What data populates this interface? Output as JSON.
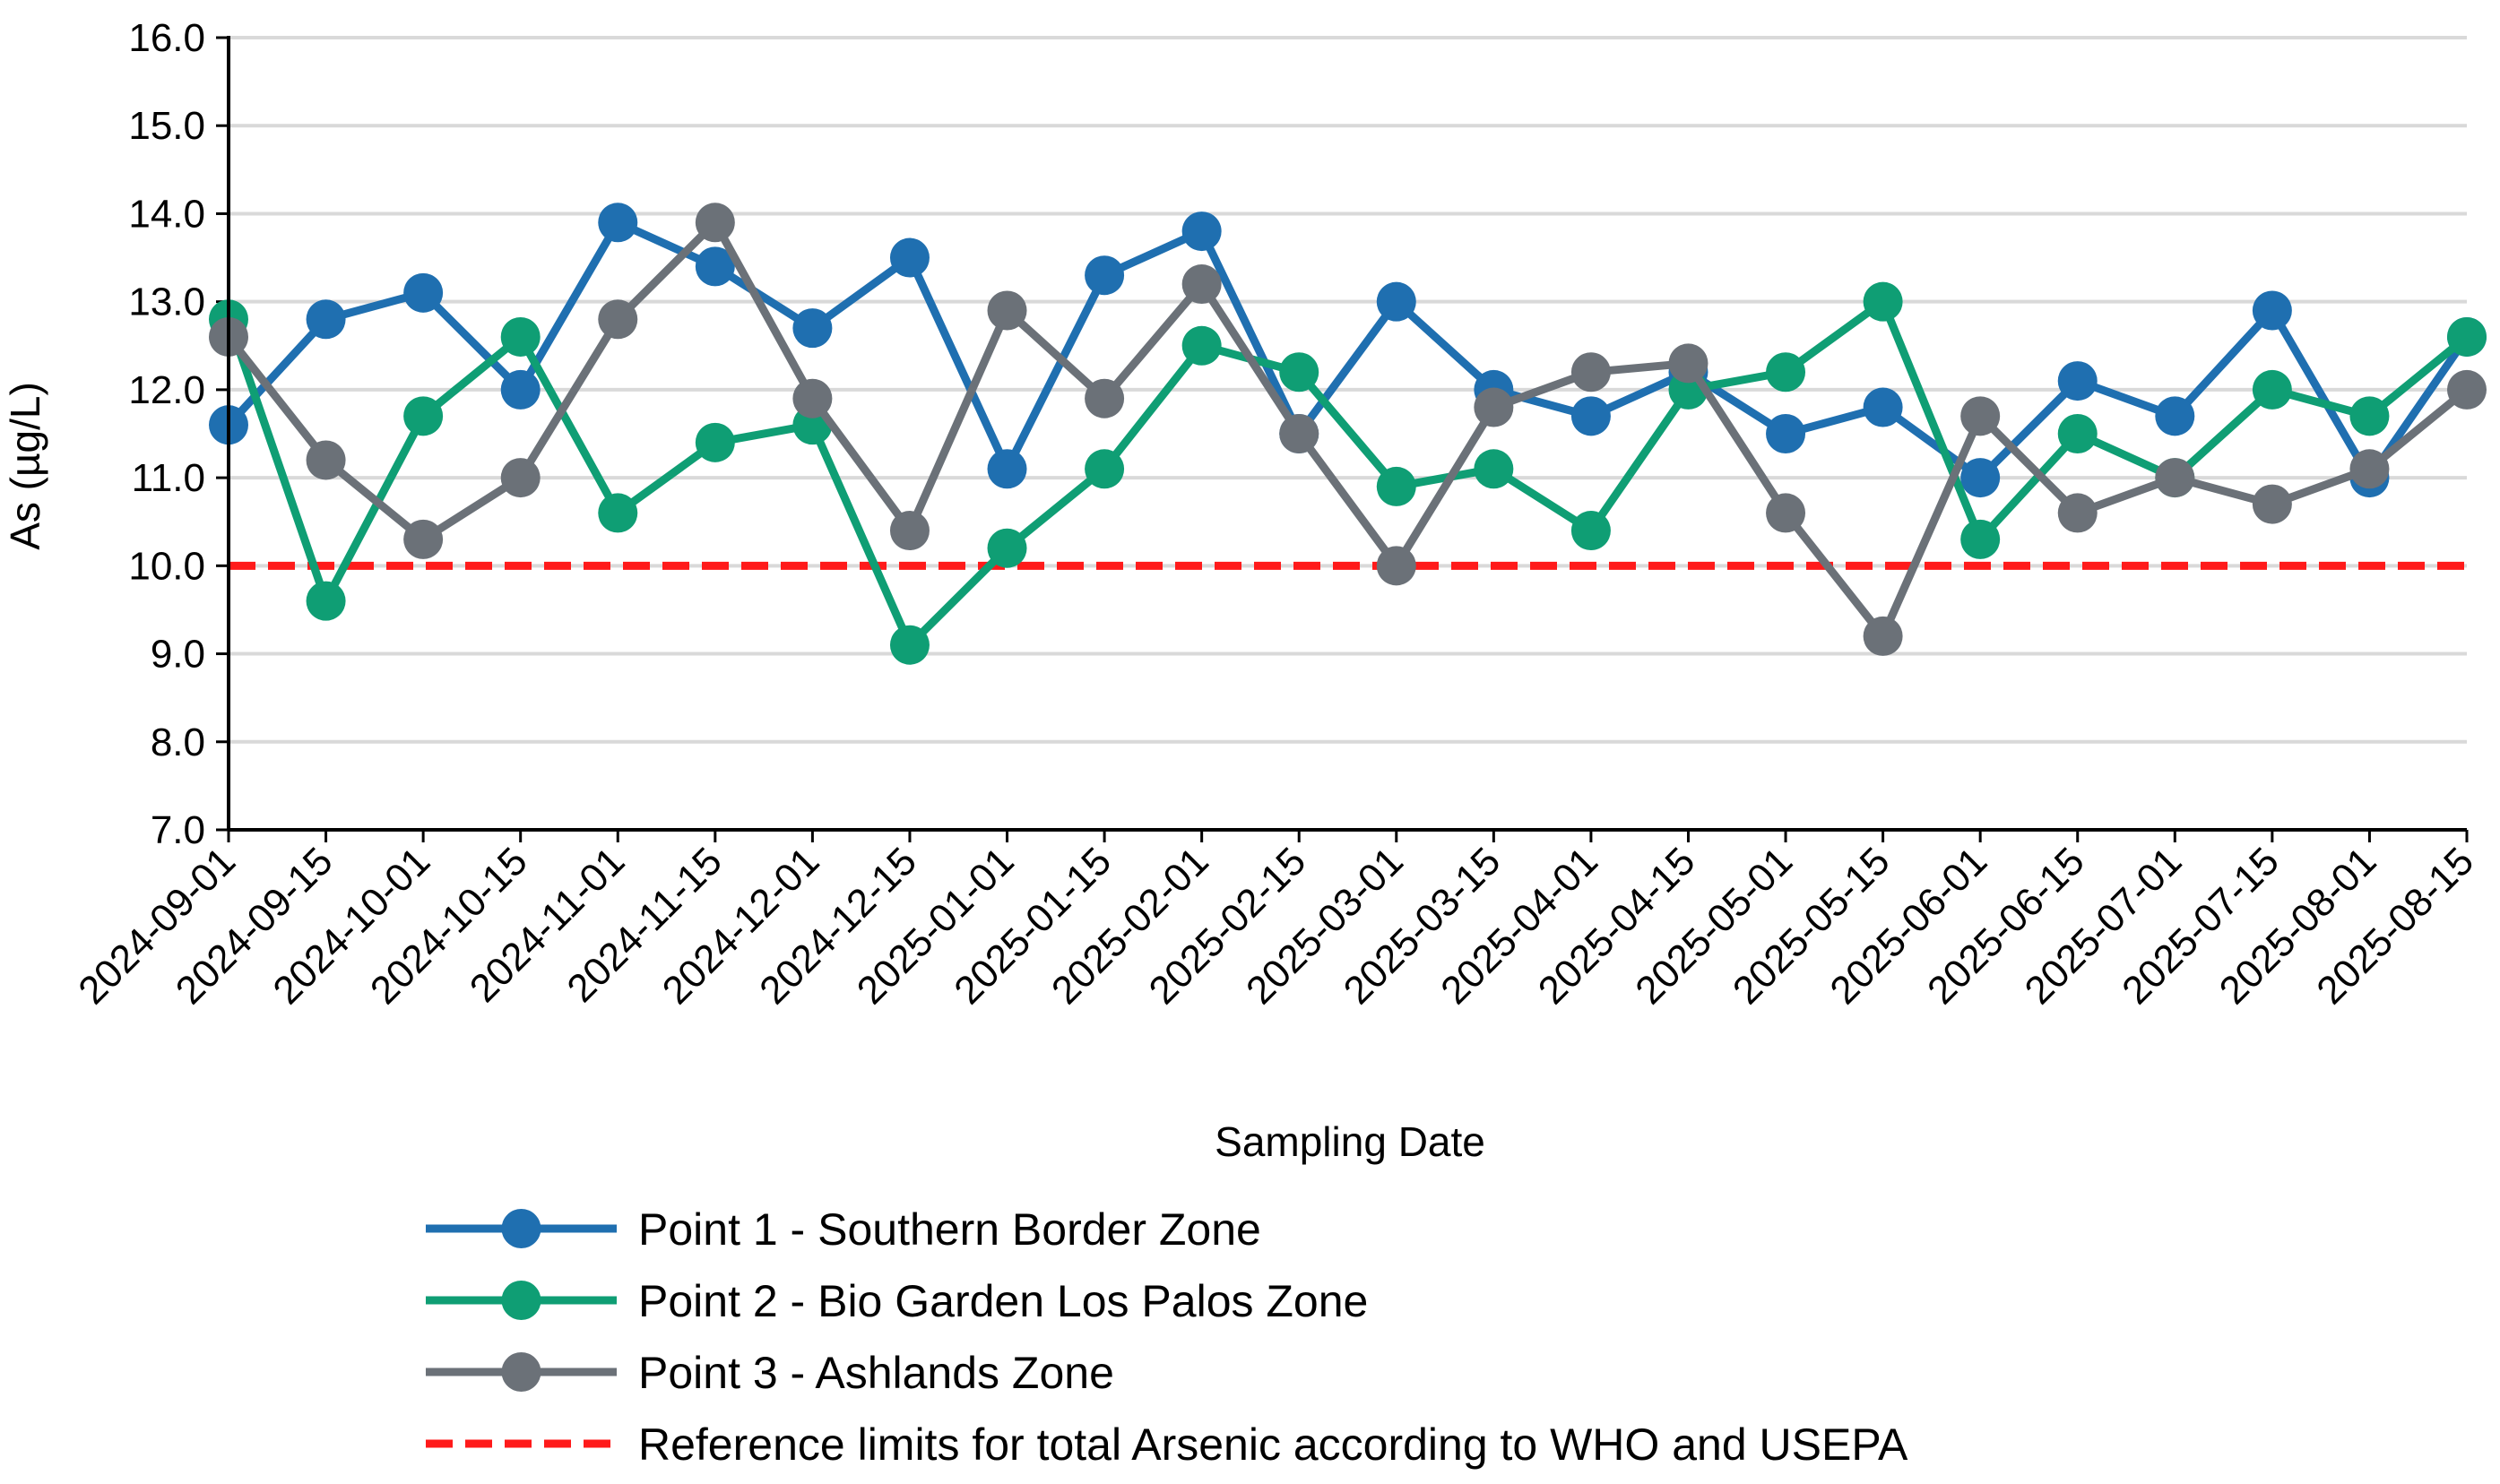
{
  "chart_data": {
    "type": "line",
    "title": "",
    "xlabel": "Sampling Date",
    "ylabel": "As (µg/L)",
    "ylim": [
      7.0,
      16.0
    ],
    "yticks": [
      "7.0",
      "8.0",
      "9.0",
      "10.0",
      "11.0",
      "12.0",
      "13.0",
      "14.0",
      "15.0",
      "16.0"
    ],
    "grid": true,
    "legend_position": "bottom",
    "categories": [
      "2024-09-01",
      "2024-09-15",
      "2024-10-01",
      "2024-10-15",
      "2024-11-01",
      "2024-11-15",
      "2024-12-01",
      "2024-12-15",
      "2025-01-01",
      "2025-01-15",
      "2025-02-01",
      "2025-02-15",
      "2025-03-01",
      "2025-03-15",
      "2025-04-01",
      "2025-04-15",
      "2025-05-01",
      "2025-05-15",
      "2025-06-01",
      "2025-06-15",
      "2025-07-01",
      "2025-07-15",
      "2025-08-01",
      "2025-08-15"
    ],
    "series": [
      {
        "name": "Point 1 - Southern Border Zone",
        "color": "#1f6fb0",
        "values": [
          11.6,
          12.8,
          13.1,
          12.0,
          13.9,
          13.4,
          12.7,
          13.5,
          11.1,
          13.3,
          13.8,
          11.5,
          13.0,
          12.0,
          11.7,
          12.2,
          11.5,
          11.8,
          11.0,
          12.1,
          11.7,
          12.9,
          11.0,
          12.6
        ]
      },
      {
        "name": "Point 2 - Bio Garden Los Palos Zone",
        "color": "#0f9e74",
        "values": [
          12.8,
          9.6,
          11.7,
          12.6,
          10.6,
          11.4,
          11.6,
          9.1,
          10.2,
          11.1,
          12.5,
          12.2,
          10.9,
          11.1,
          10.4,
          12.0,
          12.2,
          13.0,
          10.3,
          11.5,
          11.0,
          12.0,
          11.7,
          12.6
        ]
      },
      {
        "name": "Point 3 - Ashlands Zone",
        "color": "#6b7178",
        "values": [
          12.6,
          11.2,
          10.3,
          11.0,
          12.8,
          13.9,
          11.9,
          10.4,
          12.9,
          11.9,
          13.2,
          11.5,
          10.0,
          11.8,
          12.2,
          12.3,
          10.6,
          9.2,
          11.7,
          10.6,
          11.0,
          10.7,
          11.1,
          12.0
        ]
      }
    ],
    "reference_line": {
      "name": "Reference limits for total Arsenic according to WHO and USEPA",
      "value": 10.0,
      "color": "#ff1a1a",
      "style": "dashed"
    }
  }
}
